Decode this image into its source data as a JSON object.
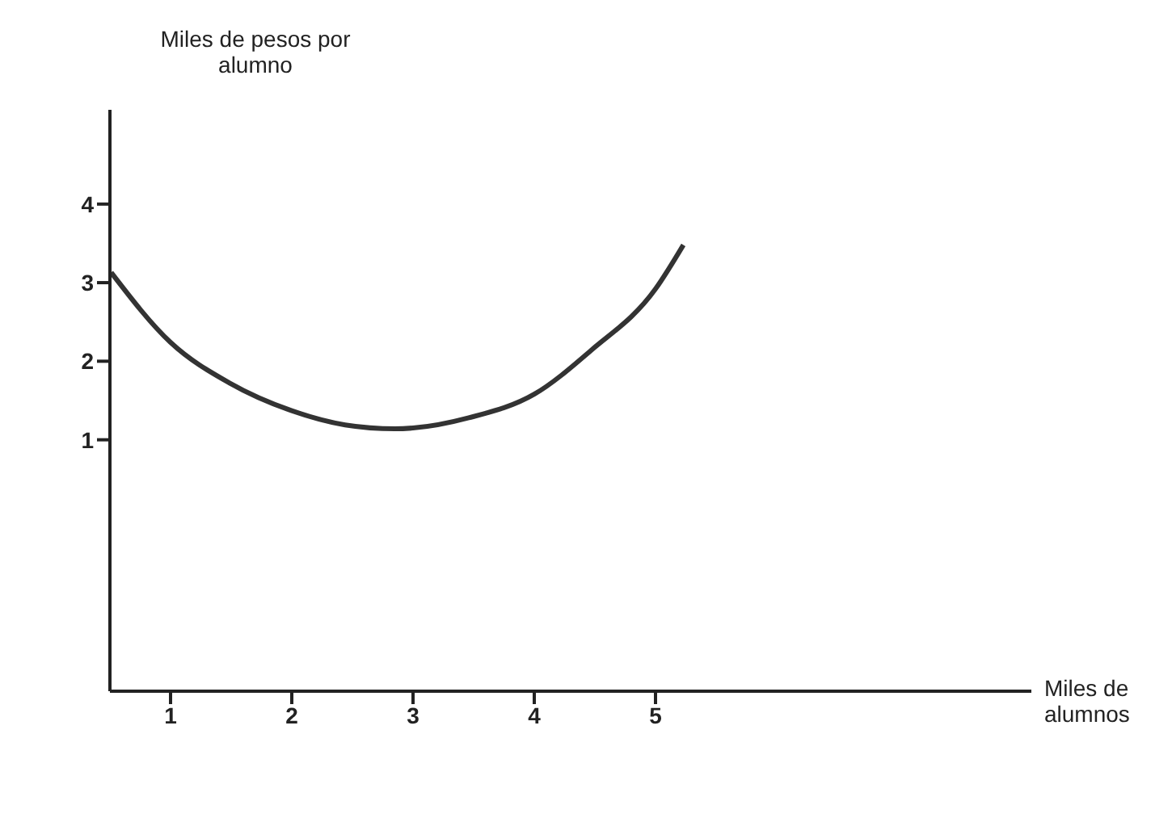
{
  "chart_data": {
    "type": "line",
    "xlabel": "Miles de alumnos",
    "ylabel": "Miles de pesos por alumno",
    "x": [
      0.51,
      1,
      1.49,
      2,
      2.44,
      2.85,
      3,
      3.46,
      4,
      4.47,
      5,
      5.23
    ],
    "series": [
      {
        "color": "#333333",
        "values": [
          3.13,
          2.24,
          1.72,
          1.37,
          1.19,
          1.14,
          1.15,
          1.28,
          1.58,
          2.14,
          2.92,
          3.48
        ]
      }
    ],
    "xlim": [
      0.5,
      8.1
    ],
    "ylim": [
      -2.2,
      5.2
    ],
    "xticks": [
      1,
      2,
      3,
      4,
      5
    ],
    "yticks": [
      1,
      2,
      3,
      4
    ],
    "grid": false,
    "legend": false,
    "marker": "none",
    "line_style": "solid"
  }
}
